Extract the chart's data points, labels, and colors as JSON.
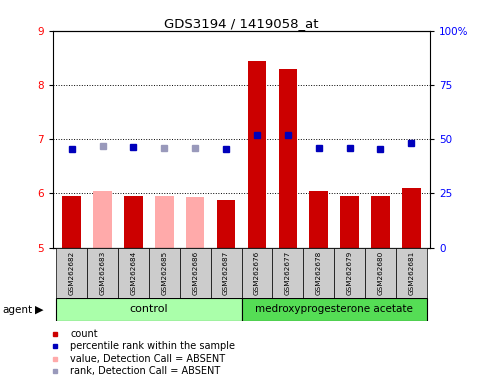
{
  "title": "GDS3194 / 1419058_at",
  "samples": [
    "GSM262682",
    "GSM262683",
    "GSM262684",
    "GSM262685",
    "GSM262686",
    "GSM262687",
    "GSM262676",
    "GSM262677",
    "GSM262678",
    "GSM262679",
    "GSM262680",
    "GSM262681"
  ],
  "bar_values": [
    5.95,
    6.05,
    5.95,
    5.95,
    5.93,
    5.88,
    8.45,
    8.3,
    6.05,
    5.95,
    5.95,
    6.1
  ],
  "bar_absent": [
    false,
    true,
    false,
    true,
    true,
    false,
    false,
    false,
    false,
    false,
    false,
    false
  ],
  "rank_values": [
    6.82,
    6.87,
    6.85,
    6.83,
    6.84,
    6.82,
    7.07,
    7.08,
    6.84,
    6.84,
    6.82,
    6.93
  ],
  "rank_absent": [
    false,
    true,
    false,
    true,
    true,
    false,
    false,
    false,
    false,
    false,
    false,
    false
  ],
  "ylim_left": [
    5,
    9
  ],
  "ylim_right": [
    0,
    100
  ],
  "yticks_left": [
    5,
    6,
    7,
    8,
    9
  ],
  "yticks_right": [
    0,
    25,
    50,
    75,
    100
  ],
  "ytick_labels_right": [
    "0",
    "25",
    "50",
    "75",
    "100%"
  ],
  "bar_color_present": "#cc0000",
  "bar_color_absent": "#ffaaaa",
  "rank_color_present": "#0000bb",
  "rank_color_absent": "#9999bb",
  "ctrl_color": "#aaffaa",
  "medro_color": "#55dd55",
  "legend_items": [
    {
      "label": "count",
      "color": "#cc0000",
      "type": "square"
    },
    {
      "label": "percentile rank within the sample",
      "color": "#0000bb",
      "type": "square"
    },
    {
      "label": "value, Detection Call = ABSENT",
      "color": "#ffaaaa",
      "type": "square"
    },
    {
      "label": "rank, Detection Call = ABSENT",
      "color": "#9999bb",
      "type": "square"
    }
  ],
  "figsize": [
    4.83,
    3.84
  ],
  "dpi": 100
}
